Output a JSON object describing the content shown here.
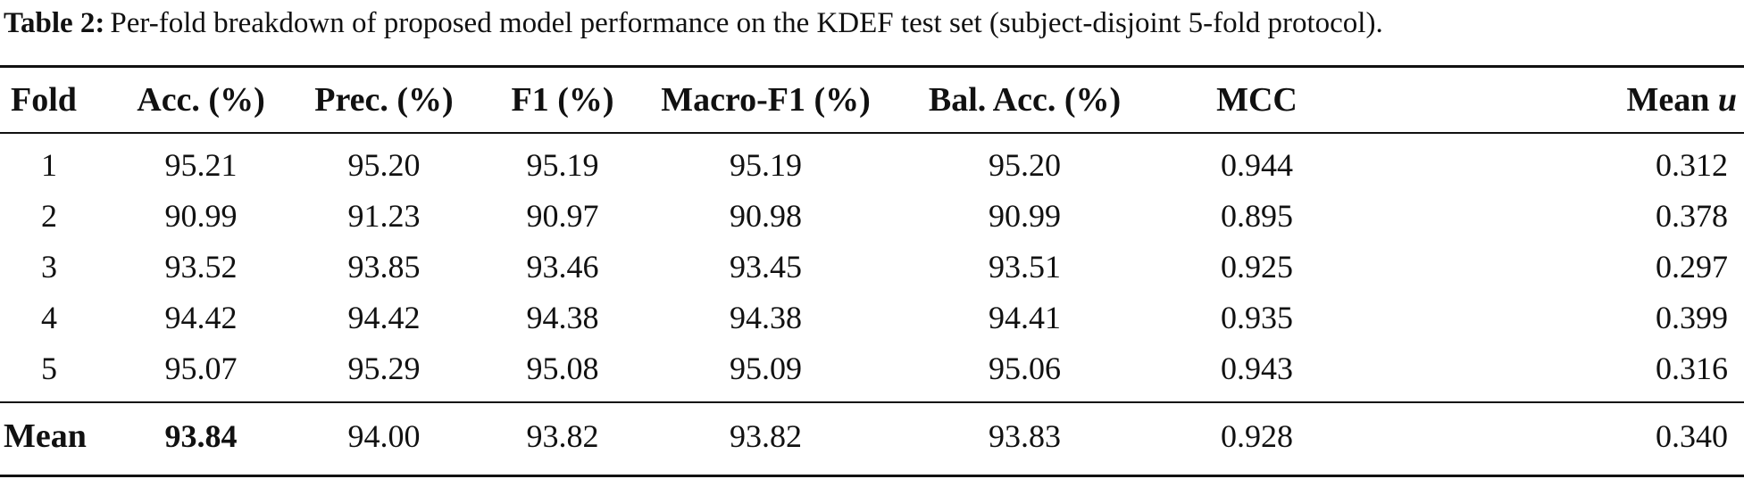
{
  "caption": {
    "label": "Table 2:",
    "text": "Per-fold breakdown of proposed model performance on the KDEF test set (subject-disjoint 5-fold protocol)."
  },
  "table": {
    "headers": {
      "fold": "Fold",
      "acc": "Acc. (%)",
      "prec": "Prec. (%)",
      "f1": "F1 (%)",
      "macro_f1": "Macro-F1 (%)",
      "bal_acc": "Bal. Acc. (%)",
      "mcc": "MCC",
      "mean_u_prefix": "Mean",
      "mean_u_symbol": "u"
    },
    "rows": [
      {
        "fold": "1",
        "acc": "95.21",
        "prec": "95.20",
        "f1": "95.19",
        "macro_f1": "95.19",
        "bal_acc": "95.20",
        "mcc": "0.944",
        "mean_u": "0.312"
      },
      {
        "fold": "2",
        "acc": "90.99",
        "prec": "91.23",
        "f1": "90.97",
        "macro_f1": "90.98",
        "bal_acc": "90.99",
        "mcc": "0.895",
        "mean_u": "0.378"
      },
      {
        "fold": "3",
        "acc": "93.52",
        "prec": "93.85",
        "f1": "93.46",
        "macro_f1": "93.45",
        "bal_acc": "93.51",
        "mcc": "0.925",
        "mean_u": "0.297"
      },
      {
        "fold": "4",
        "acc": "94.42",
        "prec": "94.42",
        "f1": "94.38",
        "macro_f1": "94.38",
        "bal_acc": "94.41",
        "mcc": "0.935",
        "mean_u": "0.399"
      },
      {
        "fold": "5",
        "acc": "95.07",
        "prec": "95.29",
        "f1": "95.08",
        "macro_f1": "95.09",
        "bal_acc": "95.06",
        "mcc": "0.943",
        "mean_u": "0.316"
      }
    ],
    "summary": {
      "fold": "Mean",
      "acc": "93.84",
      "prec": "94.00",
      "f1": "93.82",
      "macro_f1": "93.82",
      "bal_acc": "93.83",
      "mcc": "0.928",
      "mean_u": "0.340"
    }
  }
}
